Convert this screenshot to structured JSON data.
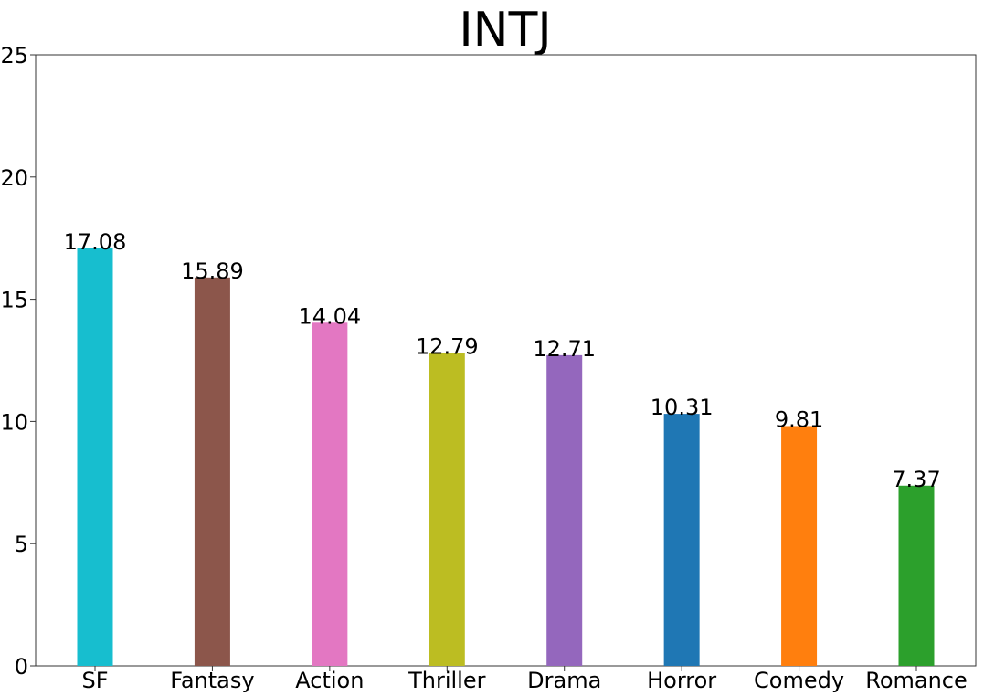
{
  "chart_data": {
    "type": "bar",
    "title": "INTJ",
    "xlabel": "",
    "ylabel": "",
    "ylim": [
      0,
      25
    ],
    "yticks": [
      "0",
      "5",
      "10",
      "15",
      "20",
      "25"
    ],
    "grid": false,
    "legend": "none",
    "categories": [
      "SF",
      "Fantasy",
      "Action",
      "Thriller",
      "Drama",
      "Horror",
      "Comedy",
      "Romance"
    ],
    "values": [
      17.08,
      15.89,
      14.04,
      12.79,
      12.71,
      10.31,
      9.81,
      7.37
    ],
    "value_labels": [
      "17.08",
      "15.89",
      "14.04",
      "12.79",
      "12.71",
      "10.31",
      "9.81",
      "7.37"
    ],
    "colors": [
      "#17becf",
      "#8c564b",
      "#e377c2",
      "#bcbd22",
      "#9467bd",
      "#1f77b4",
      "#ff7f0e",
      "#2ca02c"
    ]
  }
}
